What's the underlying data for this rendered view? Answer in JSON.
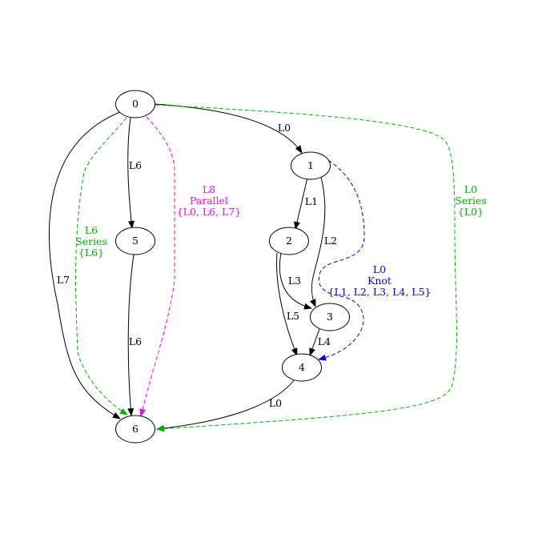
{
  "graph": {
    "nodes": [
      {
        "id": "n0",
        "label": "0"
      },
      {
        "id": "n1",
        "label": "1"
      },
      {
        "id": "n2",
        "label": "2"
      },
      {
        "id": "n3",
        "label": "3"
      },
      {
        "id": "n4",
        "label": "4"
      },
      {
        "id": "n5",
        "label": "5"
      },
      {
        "id": "n6",
        "label": "6"
      }
    ],
    "edges": [
      {
        "id": "e0-1",
        "from": "0",
        "to": "1",
        "label": "L0"
      },
      {
        "id": "e1-2",
        "from": "1",
        "to": "2",
        "label": "L1"
      },
      {
        "id": "e1-3",
        "from": "1",
        "to": "3",
        "label": "L2"
      },
      {
        "id": "e2-3",
        "from": "2",
        "to": "3",
        "label": "L3"
      },
      {
        "id": "e3-4",
        "from": "3",
        "to": "4",
        "label": "L4"
      },
      {
        "id": "e2-4",
        "from": "2",
        "to": "4",
        "label": "L5"
      },
      {
        "id": "e0-5",
        "from": "0",
        "to": "5",
        "label": "L6"
      },
      {
        "id": "e5-6",
        "from": "5",
        "to": "6",
        "label": "L6"
      },
      {
        "id": "e0-6",
        "from": "0",
        "to": "6",
        "label": "L7"
      },
      {
        "id": "e4-6",
        "from": "4",
        "to": "6",
        "label": "L0"
      }
    ],
    "reductions": [
      {
        "id": "r-parallel",
        "from": "0",
        "to": "6",
        "lines": [
          "L8",
          "Parallel",
          "{L0, L6, L7}"
        ],
        "color": "#ff00ff"
      },
      {
        "id": "r-series-l6",
        "from": "0",
        "to": "6",
        "lines": [
          "L6",
          "Series",
          "{L6}"
        ],
        "color": "#00b000"
      },
      {
        "id": "r-series-l0",
        "from": "0",
        "to": "6",
        "lines": [
          "L0",
          "Series",
          "{L0}"
        ],
        "color": "#00b000"
      },
      {
        "id": "r-knot",
        "from": "1",
        "to": "4",
        "lines": [
          "L0",
          "Knot",
          "{L1, L2, L3, L4, L5}"
        ],
        "color": "#0000ff"
      }
    ]
  },
  "colors": {
    "edge": "#000000",
    "magenta": "#ff00ff",
    "green": "#00b000",
    "blue": "#0000ff"
  }
}
